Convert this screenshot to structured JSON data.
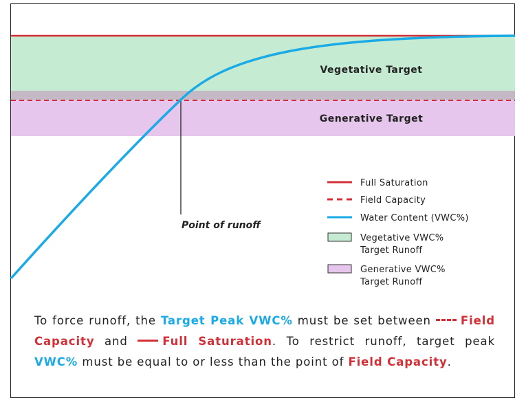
{
  "diagram": {
    "bands": {
      "vegetative": "Vegetative Target",
      "generative": "Generative Target"
    },
    "annotation": "Point of runoff",
    "legend": [
      {
        "label": "Full Saturation"
      },
      {
        "label": "Field Capacity"
      },
      {
        "label": "Water Content (VWC%)"
      },
      {
        "label": "Vegetative VWC%\nTarget Runoff"
      },
      {
        "label": "Generative VWC%\nTarget Runoff"
      }
    ],
    "description": [
      "To force runoff, the ",
      "Target Peak VWC%",
      " must be set between ",
      "Field Capacity",
      " and ",
      "Full Saturation",
      ". To restrict runoff, target peak ",
      "VWC%",
      " must be equal to or less than the point of ",
      "Field Capacity",
      "."
    ]
  }
}
